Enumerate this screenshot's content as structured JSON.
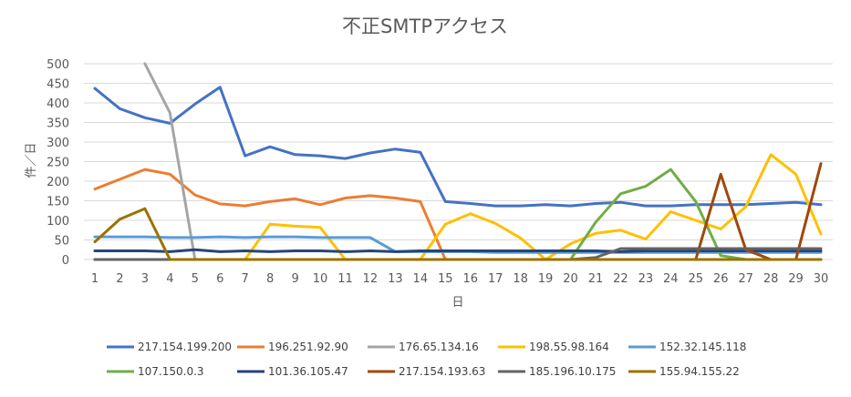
{
  "chart_data": {
    "type": "line",
    "title": "不正SMTPアクセス",
    "xlabel": "日",
    "ylabel": "件／日",
    "ylim": [
      0,
      500
    ],
    "yticks": [
      "0",
      "50",
      "100",
      "150",
      "200",
      "250",
      "300",
      "350",
      "400",
      "450",
      "500"
    ],
    "grid": true,
    "legend_position": "bottom",
    "categories": [
      "1",
      "2",
      "3",
      "4",
      "5",
      "6",
      "7",
      "8",
      "9",
      "10",
      "11",
      "12",
      "13",
      "14",
      "15",
      "16",
      "17",
      "18",
      "19",
      "20",
      "21",
      "22",
      "23",
      "24",
      "25",
      "26",
      "27",
      "28",
      "29",
      "30"
    ],
    "series": [
      {
        "name": "217.154.199.200",
        "color": "#4472C4",
        "values": [
          437,
          385,
          362,
          348,
          397,
          440,
          265,
          288,
          268,
          265,
          258,
          272,
          282,
          274,
          148,
          143,
          137,
          137,
          140,
          137,
          143,
          146,
          137,
          137,
          140,
          140,
          140,
          143,
          146,
          140
        ]
      },
      {
        "name": "196.251.92.90",
        "color": "#ED7D31",
        "values": [
          180,
          205,
          230,
          218,
          165,
          142,
          137,
          148,
          155,
          140,
          157,
          163,
          157,
          148,
          0,
          0,
          0,
          0,
          0,
          0,
          0,
          0,
          0,
          0,
          0,
          0,
          0,
          0,
          0,
          0
        ]
      },
      {
        "name": "176.65.134.16",
        "color": "#A5A5A5",
        "values": [
          null,
          null,
          500,
          375,
          0,
          0,
          0,
          0,
          0,
          0,
          0,
          0,
          0,
          0,
          0,
          0,
          0,
          0,
          0,
          0,
          0,
          0,
          0,
          0,
          0,
          0,
          0,
          0,
          0,
          0
        ]
      },
      {
        "name": "198.55.98.164",
        "color": "#FFC000",
        "values": [
          0,
          0,
          0,
          0,
          0,
          0,
          0,
          90,
          85,
          82,
          0,
          0,
          0,
          0,
          90,
          117,
          92,
          55,
          0,
          40,
          67,
          75,
          52,
          122,
          100,
          78,
          135,
          268,
          218,
          65
        ]
      },
      {
        "name": "152.32.145.118",
        "color": "#5B9BD5",
        "values": [
          58,
          58,
          58,
          56,
          56,
          58,
          56,
          58,
          58,
          56,
          56,
          56,
          20,
          20,
          20,
          20,
          18,
          18,
          18,
          18,
          18,
          18,
          18,
          18,
          18,
          18,
          18,
          18,
          18,
          18
        ]
      },
      {
        "name": "107.150.0.3",
        "color": "#70AD47",
        "values": [
          0,
          0,
          0,
          0,
          0,
          0,
          0,
          0,
          0,
          0,
          0,
          0,
          0,
          0,
          0,
          0,
          0,
          0,
          0,
          0,
          95,
          168,
          187,
          230,
          148,
          10,
          0,
          0,
          0,
          0
        ]
      },
      {
        "name": "101.36.105.47",
        "color": "#264478",
        "values": [
          22,
          22,
          22,
          20,
          25,
          20,
          22,
          20,
          22,
          22,
          20,
          22,
          20,
          22,
          22,
          22,
          22,
          22,
          22,
          22,
          22,
          20,
          22,
          22,
          22,
          22,
          22,
          22,
          22,
          22
        ]
      },
      {
        "name": "217.154.193.63",
        "color": "#9E480E",
        "values": [
          0,
          0,
          0,
          0,
          0,
          0,
          0,
          0,
          0,
          0,
          0,
          0,
          0,
          0,
          0,
          0,
          0,
          0,
          0,
          0,
          0,
          0,
          0,
          0,
          0,
          218,
          25,
          0,
          0,
          245
        ]
      },
      {
        "name": "185.196.10.175",
        "color": "#636363",
        "values": [
          0,
          0,
          0,
          0,
          0,
          0,
          0,
          0,
          0,
          0,
          0,
          0,
          0,
          0,
          0,
          0,
          0,
          0,
          0,
          0,
          5,
          28,
          28,
          28,
          28,
          28,
          28,
          28,
          28,
          28
        ]
      },
      {
        "name": "155.94.155.22",
        "color": "#997300",
        "values": [
          45,
          103,
          130,
          0,
          0,
          0,
          0,
          0,
          0,
          0,
          0,
          0,
          0,
          0,
          0,
          0,
          0,
          0,
          0,
          0,
          0,
          0,
          0,
          0,
          0,
          0,
          0,
          0,
          0,
          0
        ]
      }
    ]
  }
}
